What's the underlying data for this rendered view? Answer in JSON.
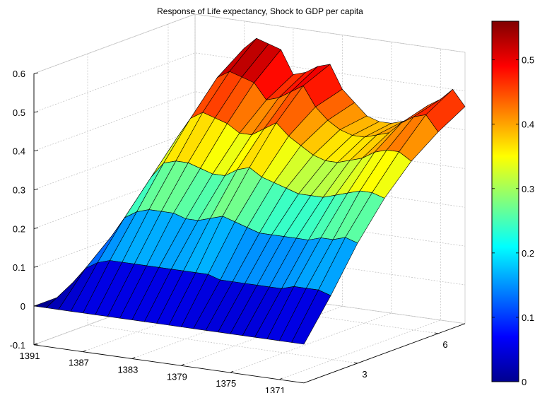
{
  "chart_data": {
    "type": "surface",
    "title": "Response of Life expectancy, Shock to  GDP per capita",
    "colormap": "jet",
    "colorbar_location": "right",
    "grid": true,
    "zlim": [
      -0.1,
      0.6
    ],
    "z_ticks": [
      "-0.1",
      "0",
      "0.1",
      "0.2",
      "0.3",
      "0.4",
      "0.5",
      "0.6"
    ],
    "clim": [
      0,
      0.56
    ],
    "colorbar_ticks": [
      "0",
      "0.1",
      "0.2",
      "0.3",
      "0.4",
      "0.5"
    ],
    "year_range": [
      1369,
      1391
    ],
    "year_ticks": [
      "1391",
      "1387",
      "1383",
      "1379",
      "1375",
      "1371"
    ],
    "horizon_range": [
      1,
      7
    ],
    "horizon_ticks": [
      "3",
      "6"
    ],
    "horizon_values": [
      1,
      2,
      3,
      4,
      5,
      6,
      7
    ],
    "years": [
      1391,
      1390,
      1389,
      1388,
      1387,
      1386,
      1385,
      1384,
      1383,
      1382,
      1381,
      1380,
      1379,
      1378,
      1377,
      1376,
      1375,
      1374,
      1373,
      1372,
      1371,
      1370,
      1369
    ],
    "response_by_year": [
      [
        0,
        0,
        0,
        0,
        0,
        0,
        0
      ],
      [
        0,
        0.04,
        0.07,
        0.09,
        0.11,
        0.12,
        0.13
      ],
      [
        0,
        0.08,
        0.14,
        0.19,
        0.24,
        0.27,
        0.29
      ],
      [
        0,
        0.1,
        0.19,
        0.27,
        0.35,
        0.41,
        0.46
      ],
      [
        0,
        0.11,
        0.21,
        0.31,
        0.4,
        0.48,
        0.53
      ],
      [
        0,
        0.11,
        0.22,
        0.32,
        0.42,
        0.5,
        0.56
      ],
      [
        0,
        0.11,
        0.22,
        0.32,
        0.41,
        0.49,
        0.55
      ],
      [
        0,
        0.11,
        0.22,
        0.31,
        0.4,
        0.48,
        0.54
      ],
      [
        0,
        0.11,
        0.21,
        0.3,
        0.38,
        0.44,
        0.48
      ],
      [
        0,
        0.11,
        0.21,
        0.3,
        0.38,
        0.45,
        0.49
      ],
      [
        0,
        0.11,
        0.22,
        0.32,
        0.4,
        0.47,
        0.51
      ],
      [
        0,
        0.11,
        0.23,
        0.33,
        0.42,
        0.49,
        0.52
      ],
      [
        0,
        0.11,
        0.22,
        0.31,
        0.39,
        0.44,
        0.46
      ],
      [
        0,
        0.1,
        0.21,
        0.3,
        0.37,
        0.41,
        0.43
      ],
      [
        0,
        0.1,
        0.2,
        0.29,
        0.35,
        0.39,
        0.4
      ],
      [
        0,
        0.1,
        0.2,
        0.28,
        0.34,
        0.38,
        0.39
      ],
      [
        0,
        0.1,
        0.2,
        0.28,
        0.34,
        0.38,
        0.39
      ],
      [
        0,
        0.1,
        0.2,
        0.28,
        0.35,
        0.39,
        0.4
      ],
      [
        0,
        0.1,
        0.2,
        0.29,
        0.36,
        0.4,
        0.42
      ],
      [
        0,
        0.11,
        0.21,
        0.3,
        0.38,
        0.43,
        0.45
      ],
      [
        0,
        0.11,
        0.21,
        0.31,
        0.39,
        0.45,
        0.47
      ],
      [
        0,
        0.11,
        0.22,
        0.31,
        0.39,
        0.46,
        0.5
      ],
      [
        0,
        0.1,
        0.21,
        0.3,
        0.37,
        0.42,
        0.46
      ]
    ]
  }
}
